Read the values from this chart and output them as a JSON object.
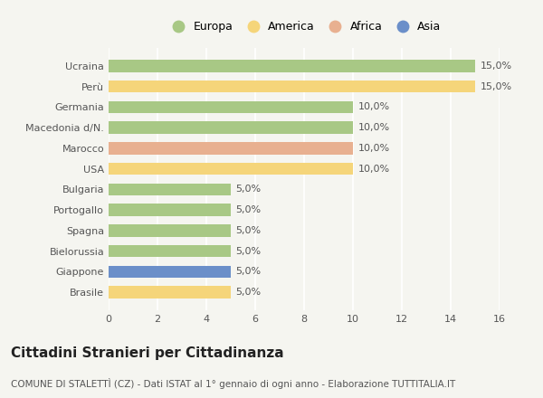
{
  "categories": [
    "Ucraina",
    "Perù",
    "Germania",
    "Macedonia d/N.",
    "Marocco",
    "USA",
    "Bulgaria",
    "Portogallo",
    "Spagna",
    "Bielorussia",
    "Giappone",
    "Brasile"
  ],
  "values": [
    15.0,
    15.0,
    10.0,
    10.0,
    10.0,
    10.0,
    5.0,
    5.0,
    5.0,
    5.0,
    5.0,
    5.0
  ],
  "continents": [
    "Europa",
    "America",
    "Europa",
    "Europa",
    "Africa",
    "America",
    "Europa",
    "Europa",
    "Europa",
    "Europa",
    "Asia",
    "America"
  ],
  "colors": {
    "Europa": "#a8c885",
    "America": "#f5d57a",
    "Africa": "#e8b090",
    "Asia": "#6b8fc9"
  },
  "legend_order": [
    "Europa",
    "America",
    "Africa",
    "Asia"
  ],
  "title": "Cittadini Stranieri per Cittadinanza",
  "subtitle": "COMUNE DI STALETTÌ (CZ) - Dati ISTAT al 1° gennaio di ogni anno - Elaborazione TUTTITALIA.IT",
  "xlim": [
    0,
    16
  ],
  "xticks": [
    0,
    2,
    4,
    6,
    8,
    10,
    12,
    14,
    16
  ],
  "background_color": "#f5f5f0",
  "bar_height": 0.6,
  "grid_color": "#ffffff",
  "title_fontsize": 11,
  "subtitle_fontsize": 7.5,
  "tick_fontsize": 8,
  "legend_fontsize": 9
}
